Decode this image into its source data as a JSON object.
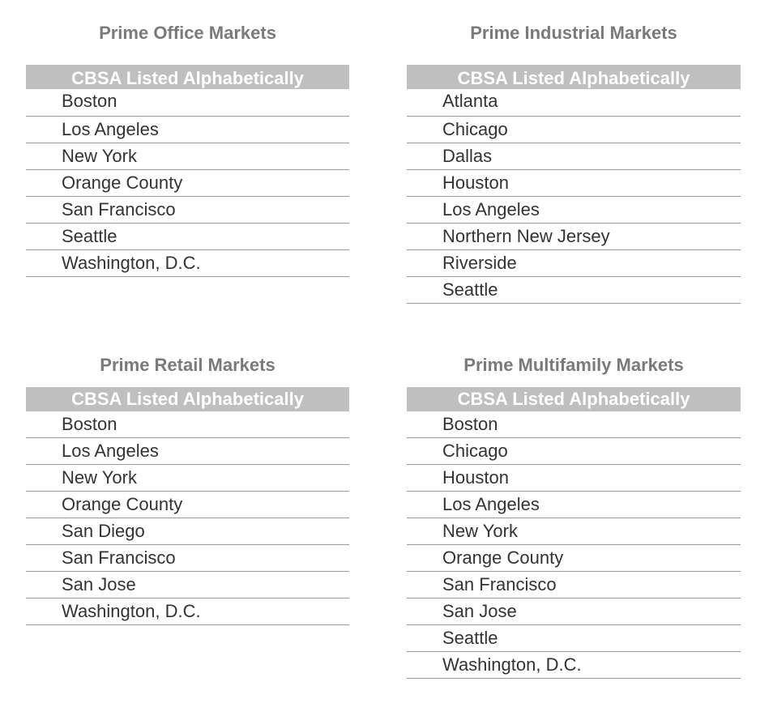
{
  "panels": {
    "office": {
      "title": "Prime Office Markets",
      "header": "CBSA Listed Alphabetically",
      "items": [
        "Boston",
        "Los Angeles",
        "New York",
        "Orange County",
        "San Francisco",
        "Seattle",
        "Washington, D.C."
      ]
    },
    "industrial": {
      "title": "Prime Industrial Markets",
      "header": "CBSA Listed Alphabetically",
      "items": [
        "Atlanta",
        "Chicago",
        "Dallas",
        "Houston",
        "Los Angeles",
        "Northern New Jersey",
        "Riverside",
        "Seattle"
      ]
    },
    "retail": {
      "title": "Prime Retail Markets",
      "header": "CBSA Listed Alphabetically",
      "items": [
        "Boston",
        "Los Angeles",
        "New York",
        "Orange County",
        "San Diego",
        "San Francisco",
        "San Jose",
        "Washington, D.C."
      ]
    },
    "multifamily": {
      "title": "Prime Multifamily Markets",
      "header": "CBSA Listed Alphabetically",
      "items": [
        "Boston",
        "Chicago",
        "Houston",
        "Los Angeles",
        "New York",
        "Orange County",
        "San Francisco",
        "San Jose",
        "Seattle",
        "Washington, D.C."
      ]
    }
  },
  "colors": {
    "header_bg": "#bfbfbf",
    "header_text": "#ffffff",
    "title_text": "#7a7a7a",
    "row_text": "#333333",
    "rule": "#9a9a9a"
  }
}
